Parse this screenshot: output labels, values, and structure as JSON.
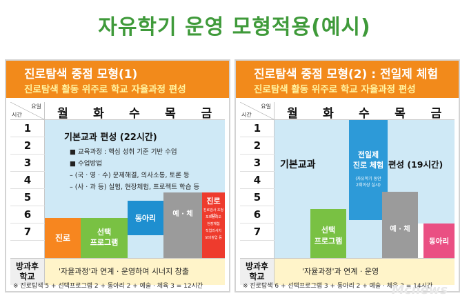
{
  "title": "자유학기 운영 모형적용(예시)",
  "header_labels": {
    "day": "요일",
    "time": "시간"
  },
  "days": [
    "월",
    "화",
    "수",
    "목",
    "금"
  ],
  "periods": [
    "1",
    "2",
    "3",
    "4",
    "5",
    "6",
    "7"
  ],
  "after_school_label": [
    "방과후",
    "학교"
  ],
  "left_panel": {
    "title": "진로탐색 중점 모형(1)",
    "subtitle": "진로탐색 활동 위주로 학교 자율과정 편성",
    "basic": {
      "title": "기본교과 편성 (22시간)",
      "lines": [
        "■ 교육과정 : 핵심 성취 기준 기반 수업",
        "■ 수업방법",
        "– (국 · 영 · 수) 문제해결, 의사소통, 토론 등",
        "– (사 · 과 등) 실험, 현장체험, 프로젝트 학습 등"
      ]
    },
    "blocks": {
      "career": "진로",
      "elective": [
        "선택",
        "프로그램"
      ],
      "club": "동아리",
      "arts": "예 · 체",
      "career2": "진로",
      "career2_detail": [
        "진로검사 초청강연",
        "포트폴리오",
        "현장체험",
        "직업리서치",
        "모의창업 등"
      ]
    },
    "after_school": "'자율과정'과 연계 · 운영하여 시너지 창출",
    "footnote": "※ 진로탐색 5 + 선택프로그램 2 + 동아리 2 + 예술 · 체육 3 = 12시간"
  },
  "right_panel": {
    "title": "진로탐색 중점 모형(2) : 전일제 체험",
    "subtitle": "진로탐색 활동 위주로 학교 자율과정 편성",
    "blocks": {
      "basic": "기본교과",
      "fullday": [
        "전일제",
        "진로 체험"
      ],
      "fullday_note": [
        "(자유학기 동안",
        "2회이상 실시)"
      ],
      "elective": [
        "선택",
        "프로그램"
      ],
      "compose": "편성 (19시간)",
      "arts": "예 · 체",
      "club": "동아리"
    },
    "after_school": "'자율과정'과 연계 · 운영",
    "footnote": "※ 진로탐색 6 + 선택프로그램 3 + 동아리 2 + 예술 · 체육 3 = 14시간"
  },
  "watermark": "Mcnews",
  "colors": {
    "title_green": "#3f9a3a",
    "header_orange": "#f28a1b",
    "subtitle_yellow": "#fff3a0",
    "basic_blue": "#cfe9f6",
    "career_orange": "#f7861f",
    "elective_green": "#79c143",
    "club_blue": "#1e8fd0",
    "arts_gray": "#9b9b9b",
    "career2_red": "#ee3b2d",
    "fullday_blue": "#2d9ad8",
    "club_pink": "#ea4f83",
    "after_yellow": "#fff4c9"
  }
}
